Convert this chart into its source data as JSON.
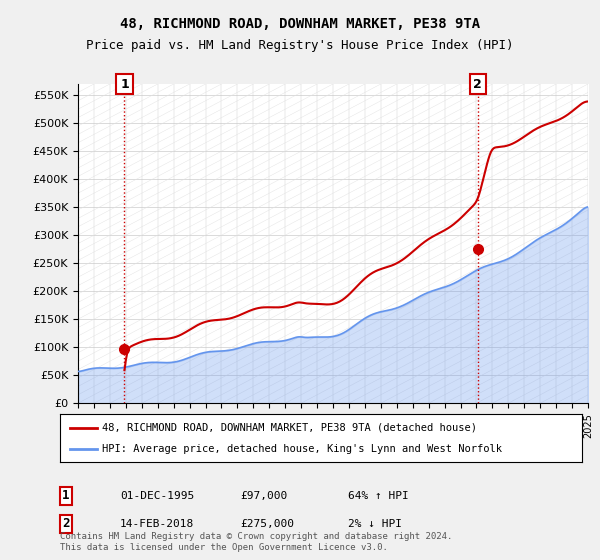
{
  "title_line1": "48, RICHMOND ROAD, DOWNHAM MARKET, PE38 9TA",
  "title_line2": "Price paid vs. HM Land Registry's House Price Index (HPI)",
  "ylim": [
    0,
    570000
  ],
  "yticks": [
    0,
    50000,
    100000,
    150000,
    200000,
    250000,
    300000,
    350000,
    400000,
    450000,
    500000,
    550000
  ],
  "ytick_labels": [
    "£0",
    "£50K",
    "£100K",
    "£150K",
    "£200K",
    "£250K",
    "£300K",
    "£350K",
    "£400K",
    "£450K",
    "£500K",
    "£550K"
  ],
  "sale1_date_idx": 2.9,
  "sale1_value": 97000,
  "sale1_label": "1",
  "sale2_date_idx": 25.1,
  "sale2_value": 275000,
  "sale2_label": "2",
  "hpi_color": "#6495ED",
  "price_color": "#CC0000",
  "background_color": "#f0f0f0",
  "plot_bg_color": "#ffffff",
  "legend1_text": "48, RICHMOND ROAD, DOWNHAM MARKET, PE38 9TA (detached house)",
  "legend2_text": "HPI: Average price, detached house, King's Lynn and West Norfolk",
  "annotation1_label": "1",
  "annotation1_date": "01-DEC-1995",
  "annotation1_price": "£97,000",
  "annotation1_hpi": "64% ↑ HPI",
  "annotation2_label": "2",
  "annotation2_date": "14-FEB-2018",
  "annotation2_price": "£275,000",
  "annotation2_hpi": "2% ↓ HPI",
  "footer": "Contains HM Land Registry data © Crown copyright and database right 2024.\nThis data is licensed under the Open Government Licence v3.0."
}
